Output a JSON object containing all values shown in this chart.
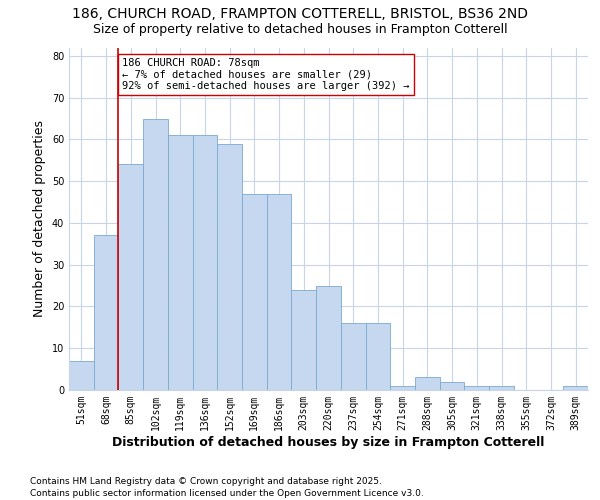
{
  "title1": "186, CHURCH ROAD, FRAMPTON COTTERELL, BRISTOL, BS36 2ND",
  "title2": "Size of property relative to detached houses in Frampton Cotterell",
  "xlabel": "Distribution of detached houses by size in Frampton Cotterell",
  "ylabel": "Number of detached properties",
  "categories": [
    "51sqm",
    "68sqm",
    "85sqm",
    "102sqm",
    "119sqm",
    "136sqm",
    "152sqm",
    "169sqm",
    "186sqm",
    "203sqm",
    "220sqm",
    "237sqm",
    "254sqm",
    "271sqm",
    "288sqm",
    "305sqm",
    "321sqm",
    "338sqm",
    "355sqm",
    "372sqm",
    "389sqm"
  ],
  "values": [
    7,
    37,
    54,
    65,
    61,
    61,
    59,
    47,
    47,
    24,
    25,
    16,
    16,
    1,
    3,
    2,
    1,
    1,
    0,
    0,
    1
  ],
  "bar_color": "#c5d8f0",
  "bar_edge_color": "#7aaad0",
  "vline_color": "#cc0000",
  "annotation_text": "186 CHURCH ROAD: 78sqm\n← 7% of detached houses are smaller (29)\n92% of semi-detached houses are larger (392) →",
  "annotation_box_edgecolor": "#cc0000",
  "ylim": [
    0,
    82
  ],
  "yticks": [
    0,
    10,
    20,
    30,
    40,
    50,
    60,
    70,
    80
  ],
  "plot_bg_color": "#ffffff",
  "fig_bg_color": "#ffffff",
  "grid_color": "#c8d4e8",
  "footer_text": "Contains HM Land Registry data © Crown copyright and database right 2025.\nContains public sector information licensed under the Open Government Licence v3.0.",
  "title_fontsize": 10,
  "subtitle_fontsize": 9,
  "axis_label_fontsize": 9,
  "tick_fontsize": 7,
  "annotation_fontsize": 7.5,
  "footer_fontsize": 6.5
}
